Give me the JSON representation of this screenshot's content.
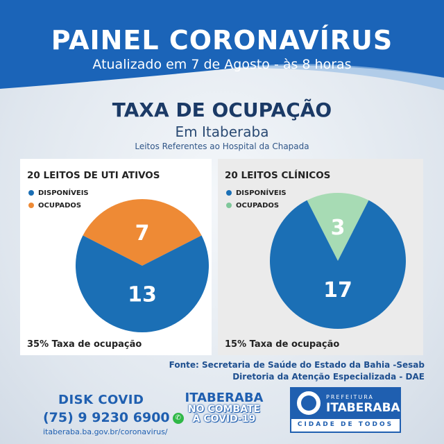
{
  "header": {
    "title": "PAINEL CORONAVÍRUS",
    "subtitle": "Atualizado em 7 de Agosto - às 8 horas"
  },
  "section": {
    "title": "TAXA DE OCUPAÇÃO",
    "subtitle": "Em Itaberaba",
    "note": "Leitos Referentes ao Hospital da Chapada"
  },
  "chart_data": [
    {
      "type": "pie",
      "title": "20 LEITOS DE UTI ATIVOS",
      "categories": [
        "DISPONÍVEIS",
        "OCUPADOS"
      ],
      "values": [
        13,
        7
      ],
      "colors": [
        "#1b6fb5",
        "#ee8a35"
      ],
      "legend": "top-left",
      "footer": "35% Taxa de ocupação"
    },
    {
      "type": "pie",
      "title": "20 LEITOS CLÍNICOS",
      "categories": [
        "DISPONÍVEIS",
        "OCUPADOS"
      ],
      "values": [
        17,
        3
      ],
      "colors": [
        "#1b6fb5",
        "#a7dbb4"
      ],
      "legend": "top-left",
      "footer": "15% Taxa de ocupação"
    }
  ],
  "source": {
    "line1": "Fonte: Secretaria de Saúde do Estado da Bahia -Sesab",
    "line2": "Diretoria da Atenção Especializada - DAE"
  },
  "footer": {
    "disk": "DISK COVID",
    "phone": "(75) 9 9230 6900",
    "url": "itaberaba.ba.gov.br/coronavirus/",
    "campaign_title": "ITABERABA",
    "campaign_line1": "NO COMBATE",
    "campaign_line2": "À COVID-19",
    "logo_prefeitura": "PREFEITURA",
    "logo_name": "ITABERABA",
    "logo_tagline": "CIDADE DE TODOS"
  },
  "colors": {
    "brand_blue": "#1f5fb0",
    "header_blue": "#1b64b8",
    "title_navy": "#1b3a66"
  }
}
